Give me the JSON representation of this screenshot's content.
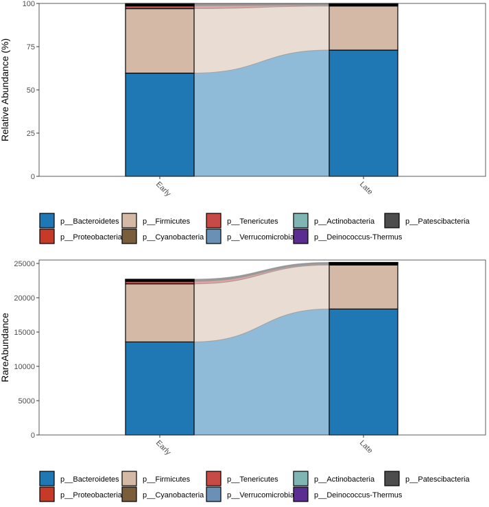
{
  "taxa": [
    "p__Bacteroidetes",
    "p__Firmicutes",
    "p__Tenericutes",
    "p__Actinobacteria",
    "p__Patescibacteria",
    "p__Proteobacteria",
    "p__Cyanobacteria",
    "p__Verrucomicrobia",
    "p__Deinococcus-Thermus"
  ],
  "colors": {
    "p__Bacteroidetes": "#1f78b4",
    "p__Firmicutes": "#d4b9a7",
    "p__Tenericutes": "#c64a45",
    "p__Actinobacteria": "#7fb6b4",
    "p__Patescibacteria": "#4d4d4d",
    "p__Proteobacteria": "#c73a28",
    "p__Cyanobacteria": "#7a5d3b",
    "p__Verrucomicrobia": "#6b90b5",
    "p__Deinococcus-Thermus": "#5b2d92"
  },
  "chart_data": [
    {
      "type": "bar",
      "stacked": true,
      "alluvial": true,
      "categories": [
        "Early",
        "Late"
      ],
      "ylabel": "Relative Abundance (%)",
      "xlabel": "",
      "ylim": [
        0,
        100
      ],
      "yticks": [
        0,
        25,
        50,
        75,
        100
      ],
      "legend": "bottom",
      "grid": false,
      "series": [
        {
          "name": "p__Bacteroidetes",
          "values": [
            59.7,
            73.0
          ]
        },
        {
          "name": "p__Firmicutes",
          "values": [
            37.3,
            25.5
          ]
        },
        {
          "name": "p__Tenericutes",
          "values": [
            1.6,
            0.4
          ]
        },
        {
          "name": "p__Actinobacteria",
          "values": [
            0.3,
            0.3
          ]
        },
        {
          "name": "p__Patescibacteria",
          "values": [
            0.3,
            0.3
          ]
        },
        {
          "name": "p__Proteobacteria",
          "values": [
            0.3,
            0.2
          ]
        },
        {
          "name": "p__Cyanobacteria",
          "values": [
            0.2,
            0.1
          ]
        },
        {
          "name": "p__Verrucomicrobia",
          "values": [
            0.2,
            0.1
          ]
        },
        {
          "name": "p__Deinococcus-Thermus",
          "values": [
            0.1,
            0.1
          ]
        }
      ]
    },
    {
      "type": "bar",
      "stacked": true,
      "alluvial": true,
      "categories": [
        "Early",
        "Late"
      ],
      "ylabel": "RareAbundance",
      "xlabel": "",
      "ylim": [
        0,
        25200
      ],
      "yticks": [
        0,
        5000,
        10000,
        15000,
        20000,
        25000
      ],
      "legend": "bottom",
      "grid": false,
      "series": [
        {
          "name": "p__Bacteroidetes",
          "values": [
            13560,
            18360
          ]
        },
        {
          "name": "p__Firmicutes",
          "values": [
            8470,
            6410
          ]
        },
        {
          "name": "p__Tenericutes",
          "values": [
            360,
            100
          ]
        },
        {
          "name": "p__Actinobacteria",
          "values": [
            70,
            75
          ]
        },
        {
          "name": "p__Patescibacteria",
          "values": [
            70,
            75
          ]
        },
        {
          "name": "p__Proteobacteria",
          "values": [
            70,
            50
          ]
        },
        {
          "name": "p__Cyanobacteria",
          "values": [
            45,
            25
          ]
        },
        {
          "name": "p__Verrucomicrobia",
          "values": [
            45,
            25
          ]
        },
        {
          "name": "p__Deinococcus-Thermus",
          "values": [
            10,
            30
          ]
        }
      ]
    }
  ]
}
